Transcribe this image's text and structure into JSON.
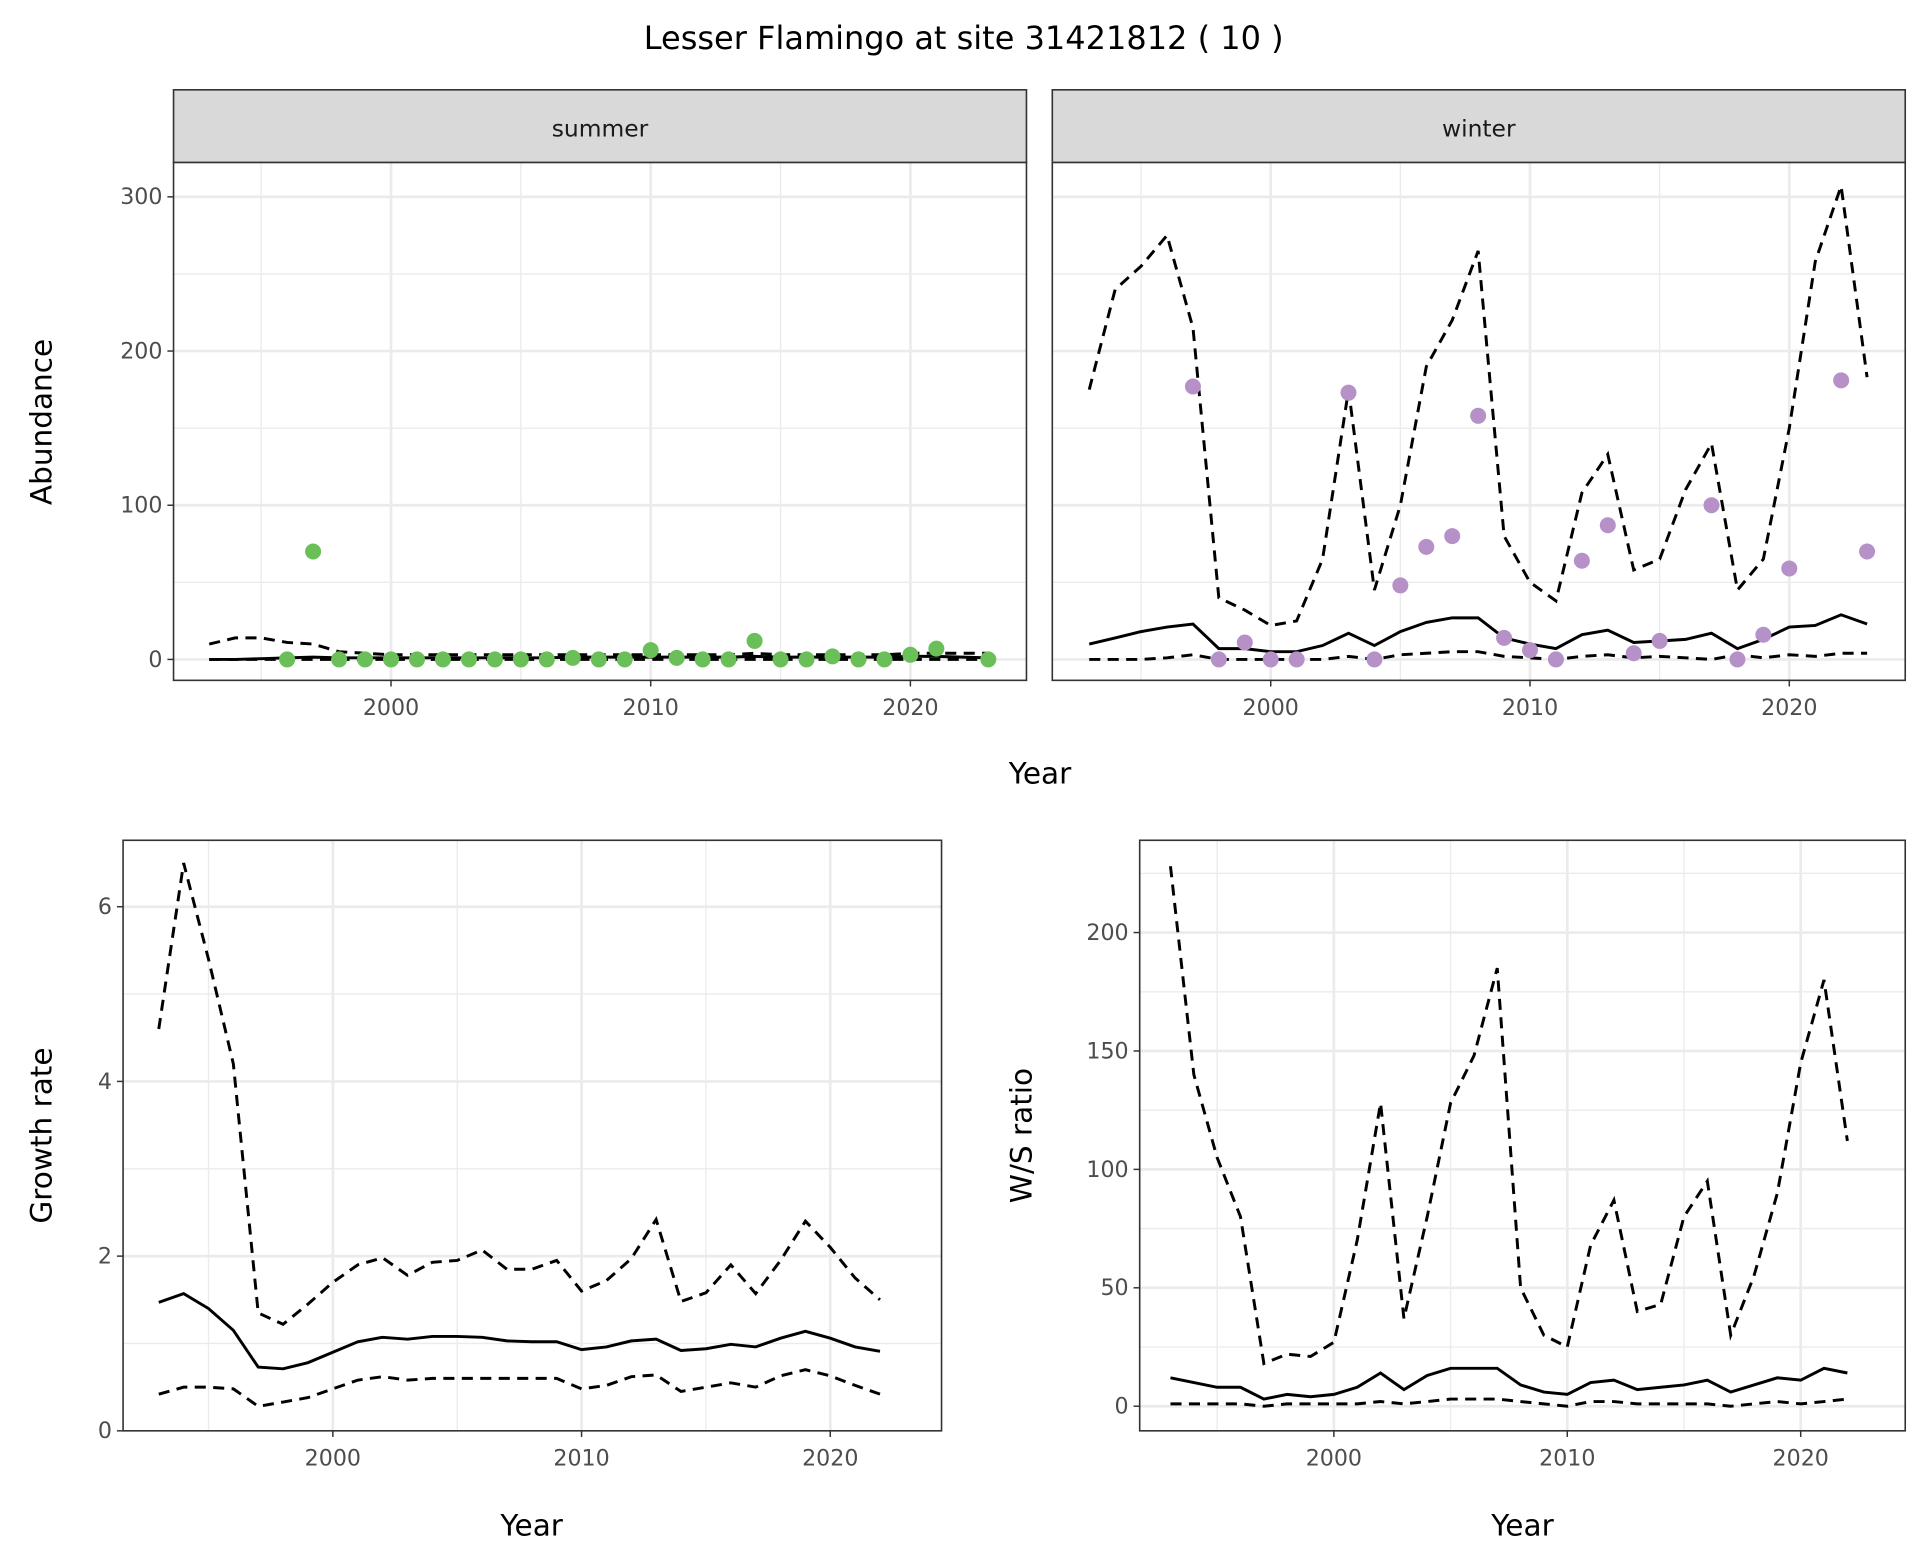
{
  "chart_data": [
    {
      "type": "line",
      "title": "Lesser Flamingo at site 31421812 ( 10 )",
      "facet": "summer",
      "xlabel": "Year",
      "ylabel": "Abundance",
      "xlim": [
        1993,
        2023
      ],
      "ylim": [
        0,
        300
      ],
      "xticks": [
        "2000",
        "2010",
        "2020"
      ],
      "yticks": [
        "0",
        "100",
        "200",
        "300"
      ],
      "point_color": "#6BBF59",
      "points": {
        "x": [
          1996,
          1997,
          1998,
          1999,
          2000,
          2001,
          2002,
          2003,
          2004,
          2005,
          2006,
          2007,
          2008,
          2009,
          2010,
          2011,
          2012,
          2013,
          2014,
          2015,
          2016,
          2017,
          2018,
          2019,
          2020,
          2021,
          2023
        ],
        "y": [
          0,
          70,
          0,
          0,
          0,
          0,
          0,
          0,
          0,
          0,
          0,
          1,
          0,
          0,
          6,
          1,
          0,
          0,
          12,
          0,
          0,
          2,
          0,
          0,
          3,
          7,
          0
        ]
      },
      "x": [
        1993,
        1994,
        1995,
        1996,
        1997,
        1998,
        1999,
        2000,
        2001,
        2002,
        2003,
        2004,
        2005,
        2006,
        2007,
        2008,
        2009,
        2010,
        2011,
        2012,
        2013,
        2014,
        2015,
        2016,
        2017,
        2018,
        2019,
        2020,
        2021,
        2022,
        2023
      ],
      "series": [
        {
          "name": "mean",
          "style": "solid",
          "values": [
            0,
            0,
            0.5,
            1,
            1.5,
            1,
            1,
            1,
            1,
            1,
            1,
            1,
            1,
            1,
            1.5,
            1.5,
            1.5,
            1.5,
            1.5,
            1.5,
            1.5,
            2,
            1.5,
            1.5,
            1.5,
            1.5,
            1.5,
            2,
            2,
            1.5,
            1
          ]
        },
        {
          "name": "upper",
          "style": "dashed",
          "values": [
            10,
            14,
            14,
            11,
            10,
            5,
            4,
            3,
            3,
            3,
            3,
            3,
            3,
            3,
            3,
            3,
            3,
            3,
            3,
            3,
            3,
            4,
            3,
            3,
            3,
            3,
            3,
            4,
            4,
            4,
            4
          ]
        },
        {
          "name": "lower",
          "style": "dashed",
          "values": [
            0,
            0,
            0,
            0,
            0,
            0,
            0,
            0,
            0,
            0,
            0,
            0,
            0,
            0,
            0,
            0,
            0,
            0,
            0,
            0,
            0,
            0,
            0,
            0,
            0,
            0,
            0,
            0,
            0,
            0,
            0
          ]
        }
      ]
    },
    {
      "type": "line",
      "facet": "winter",
      "xlabel": "Year",
      "ylabel": "Abundance",
      "xlim": [
        1993,
        2023
      ],
      "ylim": [
        0,
        300
      ],
      "xticks": [
        "2000",
        "2010",
        "2020"
      ],
      "point_color": "#B591C8",
      "points": {
        "x": [
          1997,
          1998,
          1999,
          2000,
          2001,
          2003,
          2004,
          2005,
          2006,
          2007,
          2008,
          2009,
          2010,
          2011,
          2012,
          2013,
          2014,
          2015,
          2017,
          2018,
          2019,
          2020,
          2022,
          2023
        ],
        "y": [
          177,
          0,
          11,
          0,
          0,
          173,
          0,
          48,
          73,
          80,
          158,
          14,
          6,
          0,
          64,
          87,
          4,
          12,
          100,
          0,
          16,
          59,
          181,
          70
        ]
      },
      "x": [
        1993,
        1994,
        1995,
        1996,
        1997,
        1998,
        1999,
        2000,
        2001,
        2002,
        2003,
        2004,
        2005,
        2006,
        2007,
        2008,
        2009,
        2010,
        2011,
        2012,
        2013,
        2014,
        2015,
        2016,
        2017,
        2018,
        2019,
        2020,
        2021,
        2022,
        2023
      ],
      "series": [
        {
          "name": "mean",
          "style": "solid",
          "values": [
            10,
            14,
            18,
            21,
            23,
            7,
            7,
            5,
            5,
            9,
            17,
            9,
            18,
            24,
            27,
            27,
            14,
            10,
            7,
            16,
            19,
            11,
            12,
            13,
            17,
            7,
            13,
            21,
            22,
            29,
            23
          ]
        },
        {
          "name": "upper",
          "style": "dashed",
          "values": [
            175,
            240,
            255,
            275,
            215,
            40,
            32,
            22,
            25,
            65,
            175,
            45,
            100,
            190,
            220,
            265,
            80,
            50,
            38,
            108,
            133,
            58,
            65,
            110,
            140,
            45,
            65,
            150,
            258,
            307,
            183
          ]
        },
        {
          "name": "lower",
          "style": "dashed",
          "values": [
            0,
            0,
            0,
            1,
            3,
            0,
            0,
            0,
            0,
            0,
            2,
            0,
            3,
            4,
            5,
            5,
            2,
            1,
            0,
            2,
            3,
            1,
            2,
            1,
            0,
            3,
            1,
            3,
            2,
            4,
            4
          ]
        }
      ]
    },
    {
      "type": "line",
      "xlabel": "Year",
      "ylabel": "Growth rate",
      "xlim": [
        1993,
        2022
      ],
      "ylim": [
        0,
        6.5
      ],
      "xticks": [
        "2000",
        "2010",
        "2020"
      ],
      "yticks": [
        "0",
        "2",
        "4",
        "6"
      ],
      "x": [
        1993,
        1994,
        1995,
        1996,
        1997,
        1998,
        1999,
        2000,
        2001,
        2002,
        2003,
        2004,
        2005,
        2006,
        2007,
        2008,
        2009,
        2010,
        2011,
        2012,
        2013,
        2014,
        2015,
        2016,
        2017,
        2018,
        2019,
        2020,
        2021,
        2022
      ],
      "series": [
        {
          "name": "mean",
          "style": "solid",
          "values": [
            1.47,
            1.57,
            1.4,
            1.15,
            0.73,
            0.71,
            0.78,
            0.9,
            1.02,
            1.07,
            1.05,
            1.08,
            1.08,
            1.07,
            1.03,
            1.02,
            1.02,
            0.93,
            0.96,
            1.03,
            1.05,
            0.92,
            0.94,
            0.99,
            0.96,
            1.06,
            1.14,
            1.06,
            0.96,
            0.91
          ]
        },
        {
          "name": "upper",
          "style": "dashed",
          "values": [
            4.6,
            6.5,
            5.4,
            4.2,
            1.35,
            1.22,
            1.45,
            1.7,
            1.9,
            1.98,
            1.78,
            1.93,
            1.95,
            2.07,
            1.85,
            1.85,
            1.95,
            1.6,
            1.72,
            1.97,
            2.42,
            1.48,
            1.58,
            1.9,
            1.57,
            1.95,
            2.4,
            2.1,
            1.75,
            1.5
          ]
        },
        {
          "name": "lower",
          "style": "dashed",
          "values": [
            0.42,
            0.5,
            0.5,
            0.48,
            0.28,
            0.33,
            0.38,
            0.48,
            0.58,
            0.62,
            0.58,
            0.6,
            0.6,
            0.6,
            0.6,
            0.6,
            0.6,
            0.48,
            0.52,
            0.62,
            0.64,
            0.45,
            0.5,
            0.55,
            0.5,
            0.63,
            0.7,
            0.63,
            0.52,
            0.42
          ]
        }
      ]
    },
    {
      "type": "line",
      "xlabel": "Year",
      "ylabel": "W/S ratio",
      "xlim": [
        1993,
        2022
      ],
      "ylim": [
        0,
        228
      ],
      "xticks": [
        "2000",
        "2010",
        "2020"
      ],
      "yticks": [
        "0",
        "50",
        "100",
        "150",
        "200"
      ],
      "x": [
        1993,
        1994,
        1995,
        1996,
        1997,
        1998,
        1999,
        2000,
        2001,
        2002,
        2003,
        2004,
        2005,
        2006,
        2007,
        2008,
        2009,
        2010,
        2011,
        2012,
        2013,
        2014,
        2015,
        2016,
        2017,
        2018,
        2019,
        2020,
        2021,
        2022
      ],
      "series": [
        {
          "name": "mean",
          "style": "solid",
          "values": [
            12,
            10,
            8,
            8,
            3,
            5,
            4,
            5,
            8,
            14,
            7,
            13,
            16,
            16,
            16,
            9,
            6,
            5,
            10,
            11,
            7,
            8,
            9,
            11,
            6,
            9,
            12,
            11,
            16,
            14
          ]
        },
        {
          "name": "upper",
          "style": "dashed",
          "values": [
            228,
            140,
            105,
            80,
            18,
            22,
            21,
            27,
            70,
            128,
            37,
            80,
            128,
            148,
            185,
            50,
            30,
            25,
            68,
            87,
            40,
            43,
            80,
            95,
            30,
            55,
            90,
            145,
            180,
            112
          ]
        },
        {
          "name": "lower",
          "style": "dashed",
          "values": [
            1,
            1,
            1,
            1,
            0,
            1,
            1,
            1,
            1,
            2,
            1,
            2,
            3,
            3,
            3,
            2,
            1,
            0,
            2,
            2,
            1,
            1,
            1,
            1,
            0,
            1,
            2,
            1,
            2,
            3
          ]
        }
      ]
    }
  ]
}
